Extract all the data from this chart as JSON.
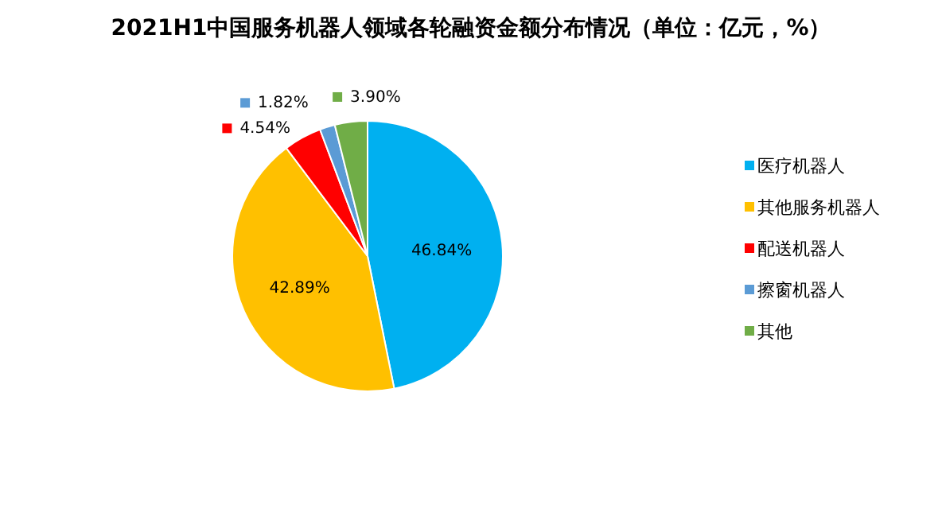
{
  "chart_data": {
    "type": "pie",
    "title": "2021H1中国服务机器人领域各轮融资金额分布情况（单位：亿元，%）",
    "categories": [
      "医疗机器人",
      "其他服务机器人",
      "配送机器人",
      "擦窗机器人",
      "其他"
    ],
    "values": [
      46.84,
      42.89,
      4.54,
      1.82,
      3.9
    ],
    "colors": [
      "#00b0f0",
      "#ffc000",
      "#ff0000",
      "#5b9bd5",
      "#70ad47"
    ],
    "value_labels": [
      "46.84%",
      "42.89%",
      "4.54%",
      "1.82%",
      "3.90%"
    ],
    "legend": "right"
  }
}
